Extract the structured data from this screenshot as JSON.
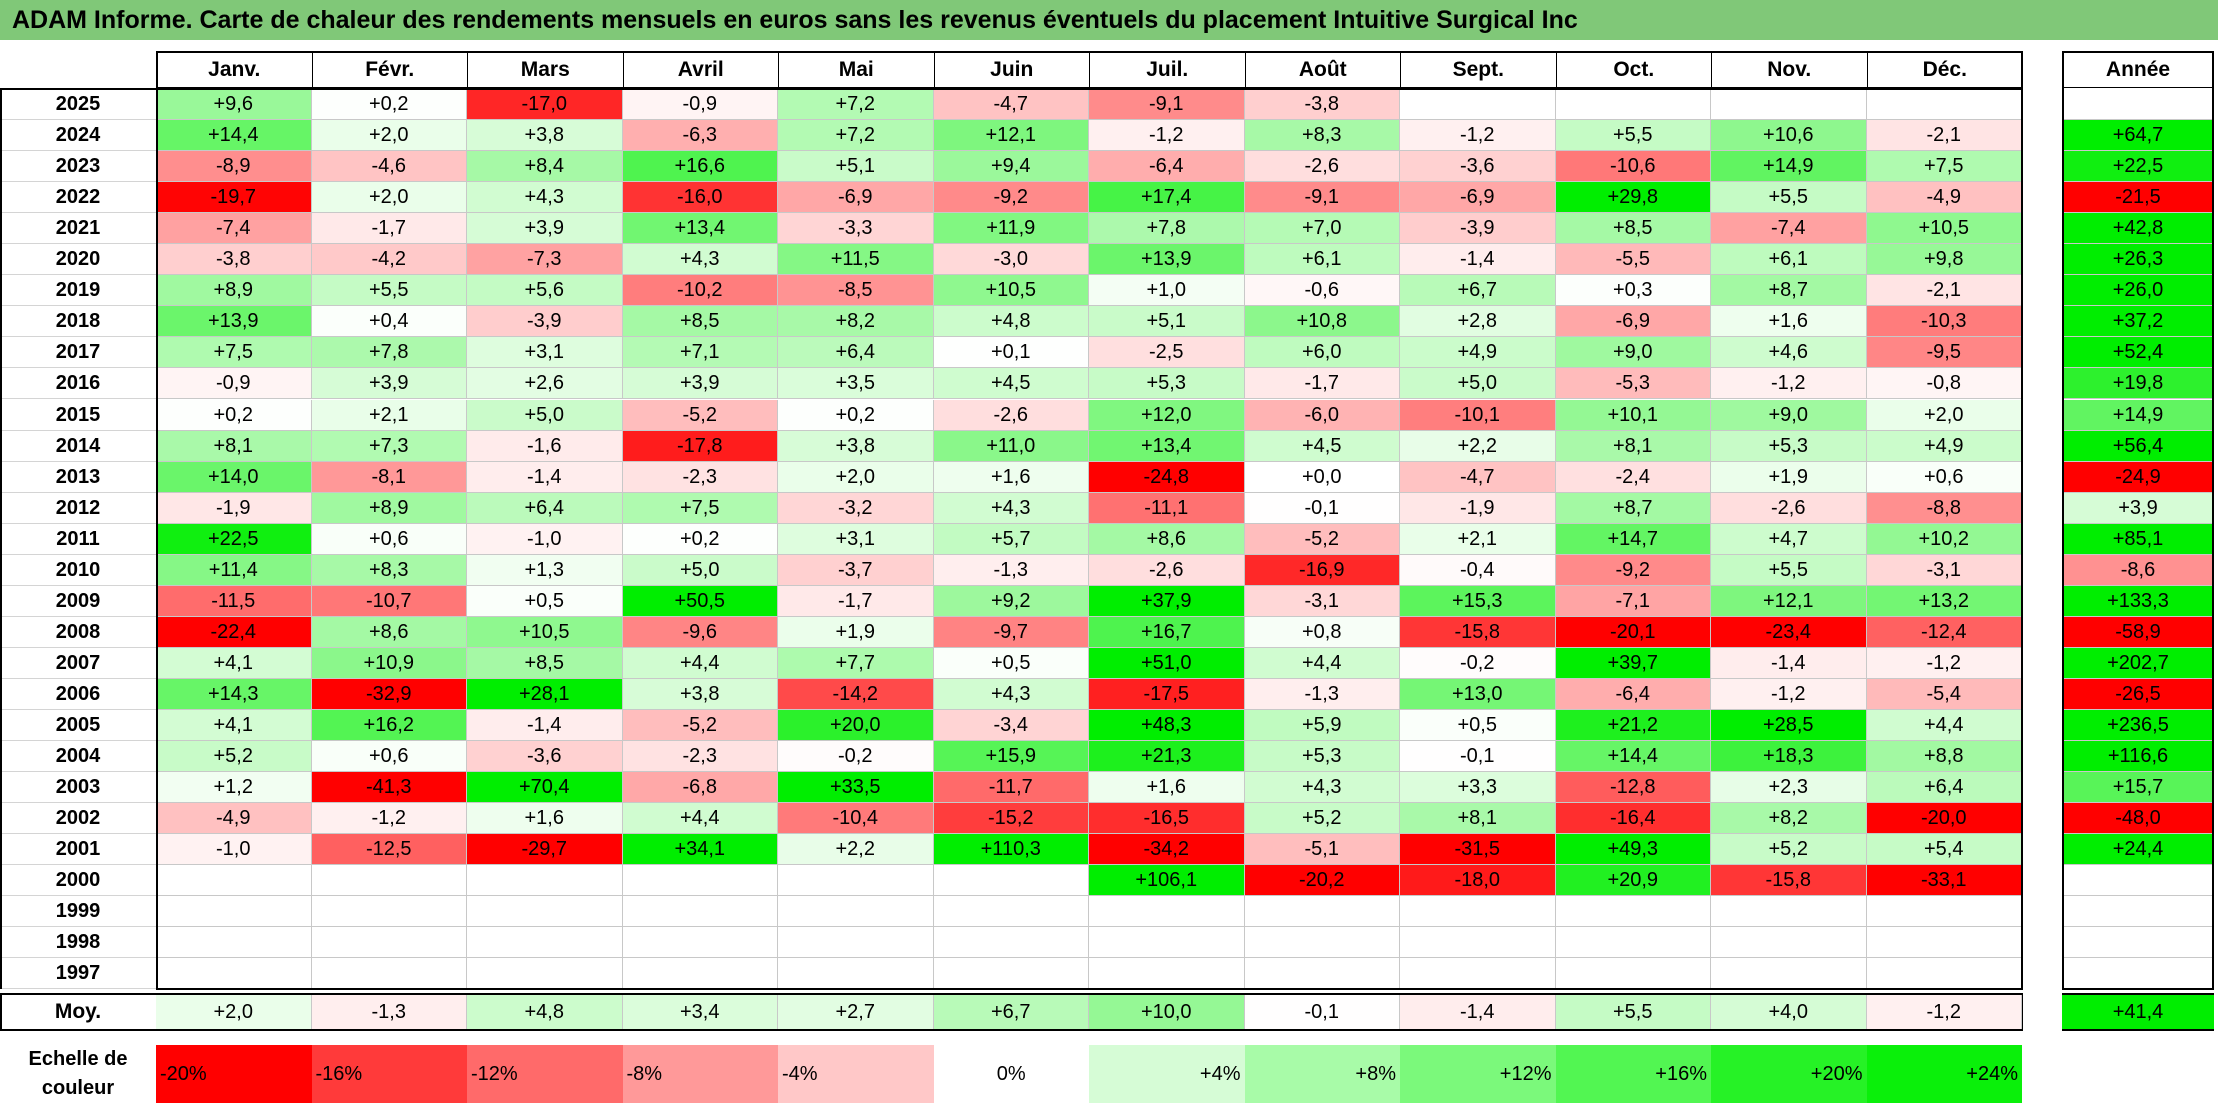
{
  "title": "ADAM Informe. Carte de chaleur des rendements mensuels en euros sans les revenus éventuels du placement Intuitive Surgical Inc",
  "chart_data": {
    "type": "heatmap",
    "months": [
      "Janv.",
      "Févr.",
      "Mars",
      "Avril",
      "Mai",
      "Juin",
      "Juil.",
      "Août",
      "Sept.",
      "Oct.",
      "Nov.",
      "Déc."
    ],
    "year_header": "Année",
    "rows": [
      {
        "year": "2025",
        "values": [
          "+9,6",
          "+0,2",
          "-17,0",
          "-0,9",
          "+7,2",
          "-4,7",
          "-9,1",
          "-3,8",
          "",
          "",
          "",
          ""
        ],
        "annual": ""
      },
      {
        "year": "2024",
        "values": [
          "+14,4",
          "+2,0",
          "+3,8",
          "-6,3",
          "+7,2",
          "+12,1",
          "-1,2",
          "+8,3",
          "-1,2",
          "+5,5",
          "+10,6",
          "-2,1"
        ],
        "annual": "+64,7"
      },
      {
        "year": "2023",
        "values": [
          "-8,9",
          "-4,6",
          "+8,4",
          "+16,6",
          "+5,1",
          "+9,4",
          "-6,4",
          "-2,6",
          "-3,6",
          "-10,6",
          "+14,9",
          "+7,5"
        ],
        "annual": "+22,5"
      },
      {
        "year": "2022",
        "values": [
          "-19,7",
          "+2,0",
          "+4,3",
          "-16,0",
          "-6,9",
          "-9,2",
          "+17,4",
          "-9,1",
          "-6,9",
          "+29,8",
          "+5,5",
          "-4,9"
        ],
        "annual": "-21,5"
      },
      {
        "year": "2021",
        "values": [
          "-7,4",
          "-1,7",
          "+3,9",
          "+13,4",
          "-3,3",
          "+11,9",
          "+7,8",
          "+7,0",
          "-3,9",
          "+8,5",
          "-7,4",
          "+10,5"
        ],
        "annual": "+42,8"
      },
      {
        "year": "2020",
        "values": [
          "-3,8",
          "-4,2",
          "-7,3",
          "+4,3",
          "+11,5",
          "-3,0",
          "+13,9",
          "+6,1",
          "-1,4",
          "-5,5",
          "+6,1",
          "+9,8"
        ],
        "annual": "+26,3"
      },
      {
        "year": "2019",
        "values": [
          "+8,9",
          "+5,5",
          "+5,6",
          "-10,2",
          "-8,5",
          "+10,5",
          "+1,0",
          "-0,6",
          "+6,7",
          "+0,3",
          "+8,7",
          "-2,1"
        ],
        "annual": "+26,0"
      },
      {
        "year": "2018",
        "values": [
          "+13,9",
          "+0,4",
          "-3,9",
          "+8,5",
          "+8,2",
          "+4,8",
          "+5,1",
          "+10,8",
          "+2,8",
          "-6,9",
          "+1,6",
          "-10,3"
        ],
        "annual": "+37,2"
      },
      {
        "year": "2017",
        "values": [
          "+7,5",
          "+7,8",
          "+3,1",
          "+7,1",
          "+6,4",
          "+0,1",
          "-2,5",
          "+6,0",
          "+4,9",
          "+9,0",
          "+4,6",
          "-9,5"
        ],
        "annual": "+52,4"
      },
      {
        "year": "2016",
        "values": [
          "-0,9",
          "+3,9",
          "+2,6",
          "+3,9",
          "+3,5",
          "+4,5",
          "+5,3",
          "-1,7",
          "+5,0",
          "-5,3",
          "-1,2",
          "-0,8"
        ],
        "annual": "+19,8"
      },
      {
        "year": "2015",
        "values": [
          "+0,2",
          "+2,1",
          "+5,0",
          "-5,2",
          "+0,2",
          "-2,6",
          "+12,0",
          "-6,0",
          "-10,1",
          "+10,1",
          "+9,0",
          "+2,0"
        ],
        "annual": "+14,9"
      },
      {
        "year": "2014",
        "values": [
          "+8,1",
          "+7,3",
          "-1,6",
          "-17,8",
          "+3,8",
          "+11,0",
          "+13,4",
          "+4,5",
          "+2,2",
          "+8,1",
          "+5,3",
          "+4,9"
        ],
        "annual": "+56,4"
      },
      {
        "year": "2013",
        "values": [
          "+14,0",
          "-8,1",
          "-1,4",
          "-2,3",
          "+2,0",
          "+1,6",
          "-24,8",
          "+0,0",
          "-4,7",
          "-2,4",
          "+1,9",
          "+0,6"
        ],
        "annual": "-24,9"
      },
      {
        "year": "2012",
        "values": [
          "-1,9",
          "+8,9",
          "+6,4",
          "+7,5",
          "-3,2",
          "+4,3",
          "-11,1",
          "-0,1",
          "-1,9",
          "+8,7",
          "-2,6",
          "-8,8"
        ],
        "annual": "+3,9"
      },
      {
        "year": "2011",
        "values": [
          "+22,5",
          "+0,6",
          "-1,0",
          "+0,2",
          "+3,1",
          "+5,7",
          "+8,6",
          "-5,2",
          "+2,1",
          "+14,7",
          "+4,7",
          "+10,2"
        ],
        "annual": "+85,1"
      },
      {
        "year": "2010",
        "values": [
          "+11,4",
          "+8,3",
          "+1,3",
          "+5,0",
          "-3,7",
          "-1,3",
          "-2,6",
          "-16,9",
          "-0,4",
          "-9,2",
          "+5,5",
          "-3,1"
        ],
        "annual": "-8,6"
      },
      {
        "year": "2009",
        "values": [
          "-11,5",
          "-10,7",
          "+0,5",
          "+50,5",
          "-1,7",
          "+9,2",
          "+37,9",
          "-3,1",
          "+15,3",
          "-7,1",
          "+12,1",
          "+13,2"
        ],
        "annual": "+133,3"
      },
      {
        "year": "2008",
        "values": [
          "-22,4",
          "+8,6",
          "+10,5",
          "-9,6",
          "+1,9",
          "-9,7",
          "+16,7",
          "+0,8",
          "-15,8",
          "-20,1",
          "-23,4",
          "-12,4"
        ],
        "annual": "-58,9"
      },
      {
        "year": "2007",
        "values": [
          "+4,1",
          "+10,9",
          "+8,5",
          "+4,4",
          "+7,7",
          "+0,5",
          "+51,0",
          "+4,4",
          "-0,2",
          "+39,7",
          "-1,4",
          "-1,2"
        ],
        "annual": "+202,7"
      },
      {
        "year": "2006",
        "values": [
          "+14,3",
          "-32,9",
          "+28,1",
          "+3,8",
          "-14,2",
          "+4,3",
          "-17,5",
          "-1,3",
          "+13,0",
          "-6,4",
          "-1,2",
          "-5,4"
        ],
        "annual": "-26,5"
      },
      {
        "year": "2005",
        "values": [
          "+4,1",
          "+16,2",
          "-1,4",
          "-5,2",
          "+20,0",
          "-3,4",
          "+48,3",
          "+5,9",
          "+0,5",
          "+21,2",
          "+28,5",
          "+4,4"
        ],
        "annual": "+236,5"
      },
      {
        "year": "2004",
        "values": [
          "+5,2",
          "+0,6",
          "-3,6",
          "-2,3",
          "-0,2",
          "+15,9",
          "+21,3",
          "+5,3",
          "-0,1",
          "+14,4",
          "+18,3",
          "+8,8"
        ],
        "annual": "+116,6"
      },
      {
        "year": "2003",
        "values": [
          "+1,2",
          "-41,3",
          "+70,4",
          "-6,8",
          "+33,5",
          "-11,7",
          "+1,6",
          "+4,3",
          "+3,3",
          "-12,8",
          "+2,3",
          "+6,4"
        ],
        "annual": "+15,7"
      },
      {
        "year": "2002",
        "values": [
          "-4,9",
          "-1,2",
          "+1,6",
          "+4,4",
          "-10,4",
          "-15,2",
          "-16,5",
          "+5,2",
          "+8,1",
          "-16,4",
          "+8,2",
          "-20,0"
        ],
        "annual": "-48,0"
      },
      {
        "year": "2001",
        "values": [
          "-1,0",
          "-12,5",
          "-29,7",
          "+34,1",
          "+2,2",
          "+110,3",
          "-34,2",
          "-5,1",
          "-31,5",
          "+49,3",
          "+5,2",
          "+5,4"
        ],
        "annual": "+24,4"
      },
      {
        "year": "2000",
        "values": [
          "",
          "",
          "",
          "",
          "",
          "",
          "+106,1",
          "-20,2",
          "-18,0",
          "+20,9",
          "-15,8",
          "-33,1"
        ],
        "annual": ""
      },
      {
        "year": "1999",
        "values": [
          "",
          "",
          "",
          "",
          "",
          "",
          "",
          "",
          "",
          "",
          "",
          ""
        ],
        "annual": ""
      },
      {
        "year": "1998",
        "values": [
          "",
          "",
          "",
          "",
          "",
          "",
          "",
          "",
          "",
          "",
          "",
          ""
        ],
        "annual": ""
      },
      {
        "year": "1997",
        "values": [
          "",
          "",
          "",
          "",
          "",
          "",
          "",
          "",
          "",
          "",
          "",
          ""
        ],
        "annual": ""
      }
    ],
    "average": {
      "label": "Moy.",
      "values": [
        "+2,0",
        "-1,3",
        "+4,8",
        "+3,4",
        "+2,7",
        "+6,7",
        "+10,0",
        "-0,1",
        "-1,4",
        "+5,5",
        "+4,0",
        "-1,2"
      ],
      "annual": "+41,4"
    },
    "scale": {
      "label": "Echelle de couleur",
      "steps": [
        "-20%",
        "-16%",
        "-12%",
        "-8%",
        "-4%",
        "0%",
        "+4%",
        "+8%",
        "+12%",
        "+16%",
        "+20%",
        "+24%"
      ],
      "colors": [
        "#ff0000",
        "#ff3a3a",
        "#ff6a6a",
        "#ff9999",
        "#ffc8c8",
        "#ffffff",
        "#d6fcd6",
        "#a8fba8",
        "#7bf97b",
        "#52f652",
        "#26f226",
        "#0af00a"
      ]
    },
    "color_scale": {
      "negative": "#ff0000",
      "neutral": "#ffffff",
      "positive": "#00ee00",
      "range": [
        -20,
        24
      ]
    }
  }
}
